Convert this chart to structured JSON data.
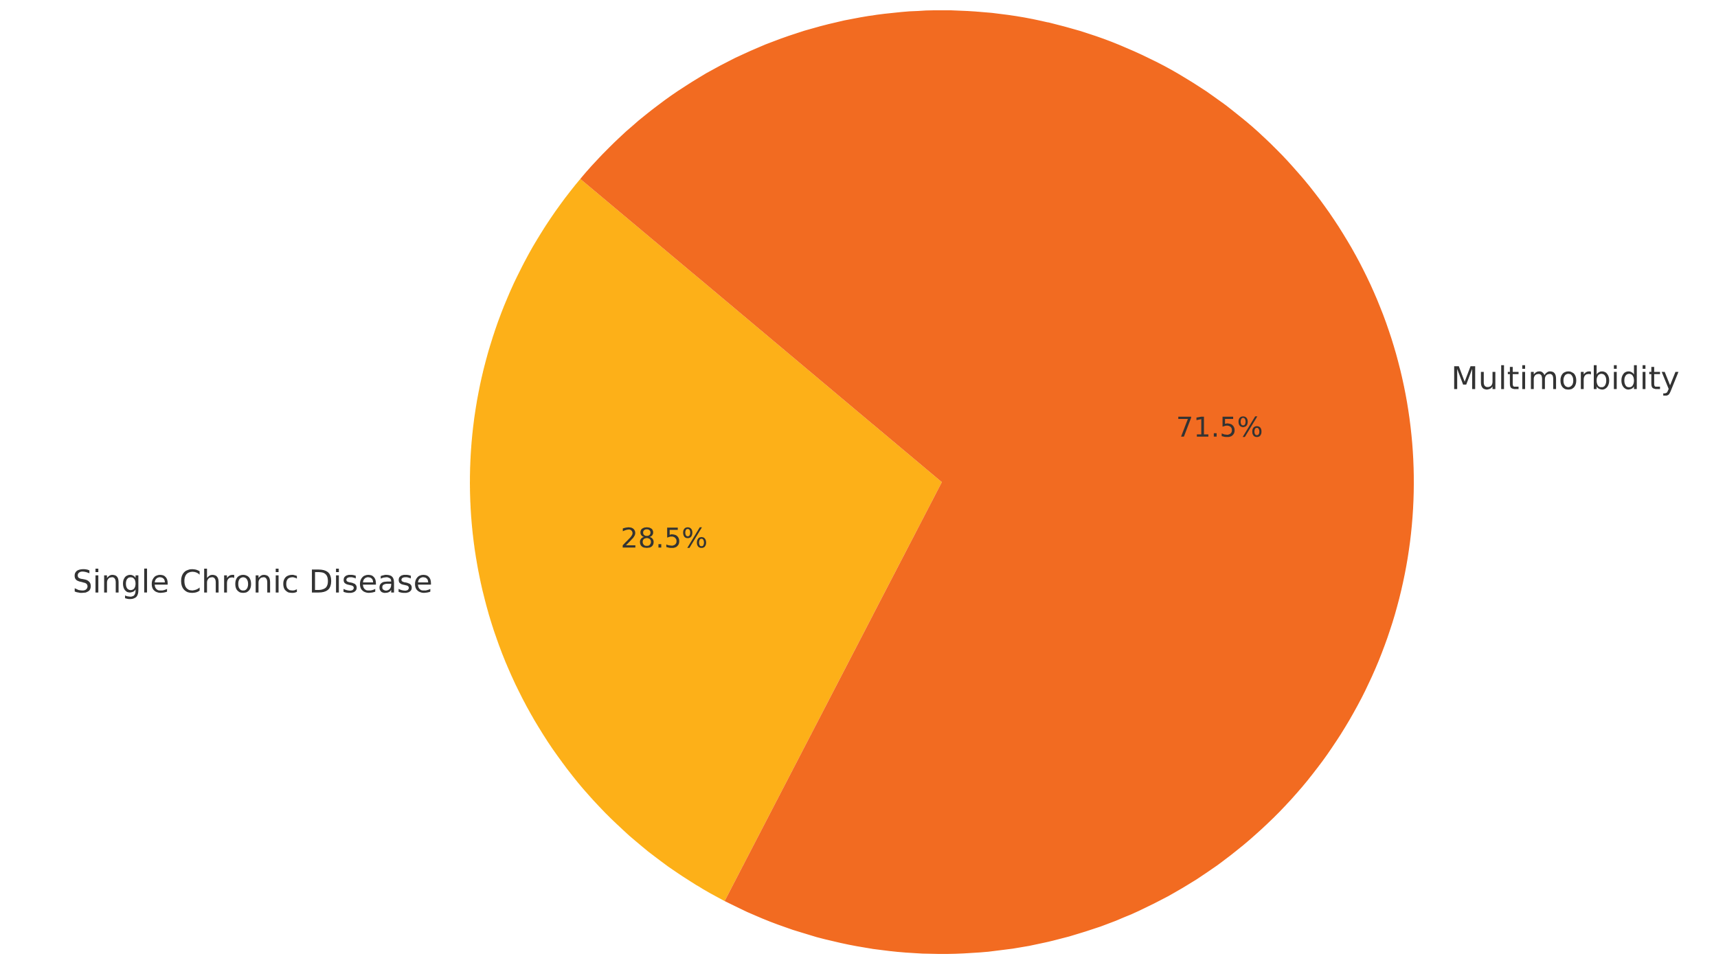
{
  "chart_data": {
    "type": "pie",
    "categories": [
      "Single Chronic Disease",
      "Multimorbidity"
    ],
    "values": [
      28.5,
      71.5
    ],
    "value_labels": [
      "28.5%",
      "71.5%"
    ],
    "colors": [
      "#fdb018",
      "#f26b21"
    ]
  }
}
